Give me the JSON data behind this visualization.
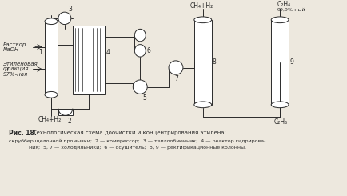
{
  "bg_color": "#ede8de",
  "line_color": "#2a2a2a",
  "title_bold": "Рис. 18.",
  "title_rest": " Технологическая схема доочистки и концентрирования этилена;",
  "title_line2": "скруббер щелочной промывки;  2 — компрессор;  3 — теплообменник;  4 — реактор гидрирова-",
  "title_line3": "ния;  5, 7 — холодильники;  6 — осушитель;  8, 9 — ректификационные колонны.",
  "label_Rastvor": "Раствор",
  "label_NaOH": "NaOH",
  "label_etilen": "Этиленовая",
  "label_frakcia": "фракция",
  "label_97": "97%-ная",
  "label_CH4H2_bot": "CH₄+H₂",
  "label_1": "1",
  "label_2": "2",
  "label_3": "3",
  "label_4": "4",
  "label_5": "5",
  "label_6": "6",
  "label_7": "7",
  "label_8": "8",
  "label_9": "9",
  "label_CH4H2_top": "CH₄+H₂",
  "label_C2H4": "C₂H₄",
  "label_9999": "99,9%-ный",
  "label_C2H6": "C₂H₆"
}
